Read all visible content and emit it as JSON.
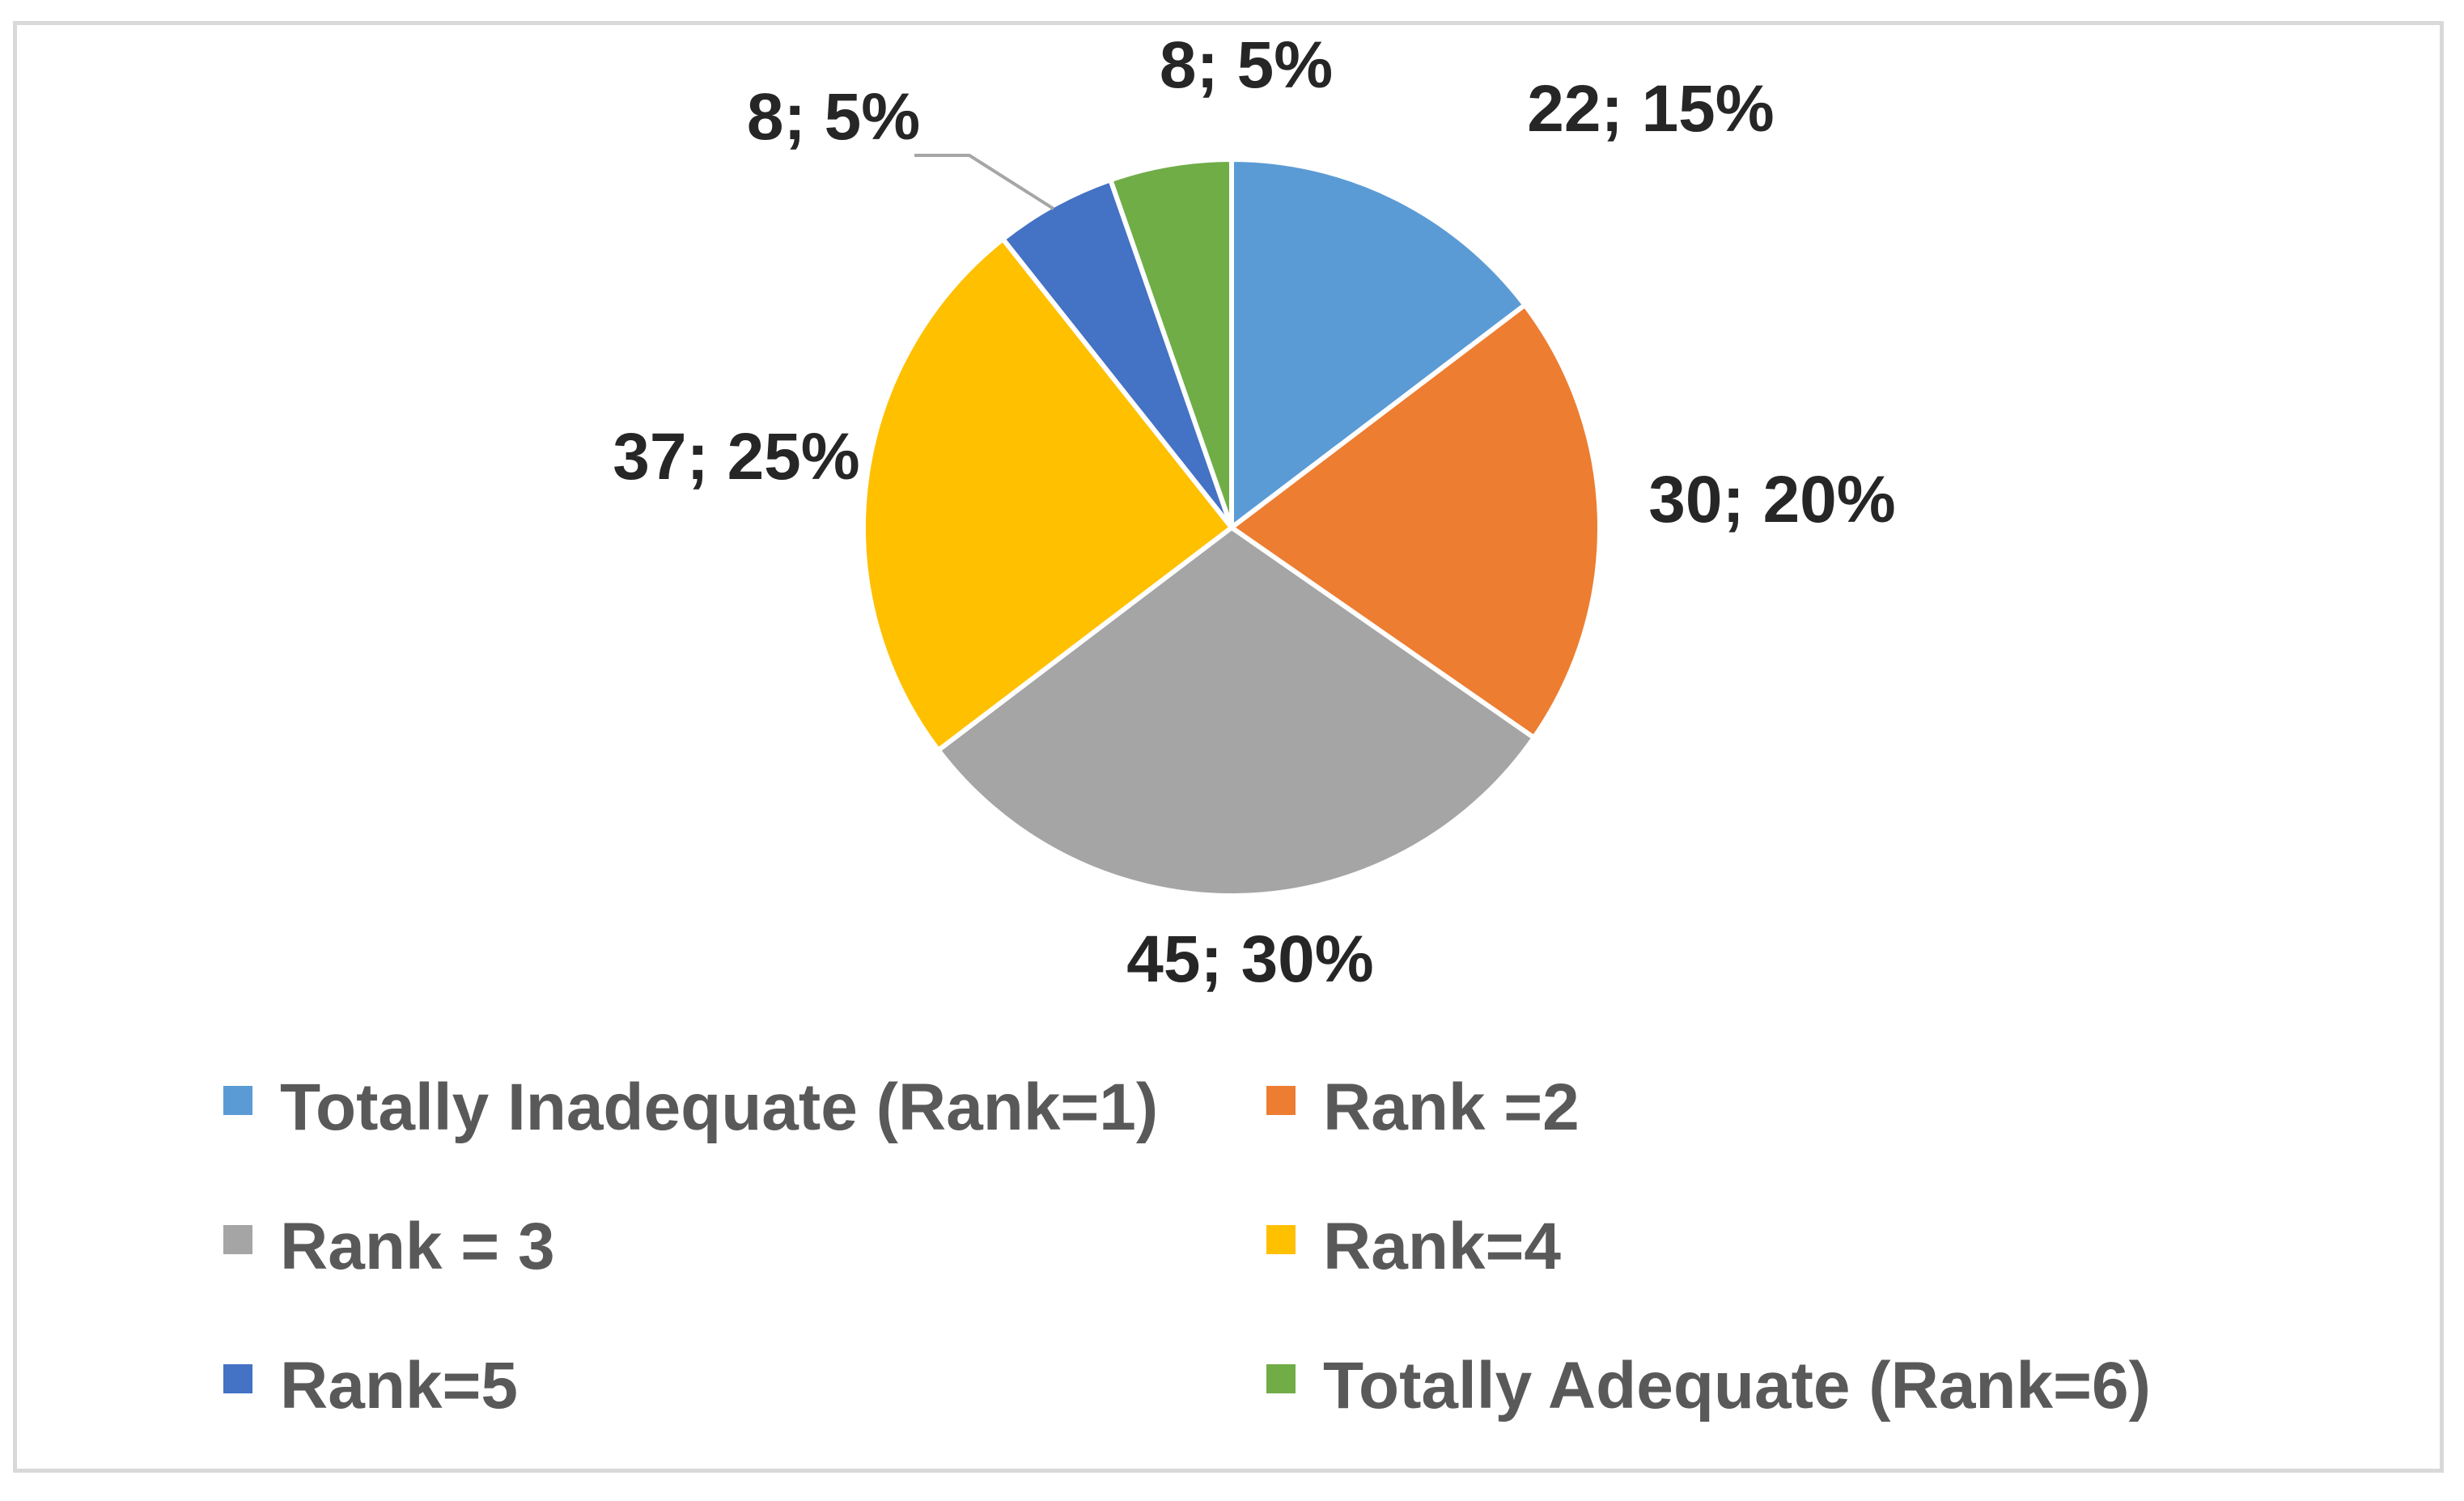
{
  "chart_data": {
    "type": "pie",
    "title": "",
    "legend_position": "bottom",
    "slices": [
      {
        "name": "Totally Inadequate (Rank=1)",
        "value": 22,
        "percent": 15,
        "label": "22; 15%",
        "color": "#5b9bd5"
      },
      {
        "name": "Rank =2",
        "value": 30,
        "percent": 20,
        "label": "30; 20%",
        "color": "#ed7d31"
      },
      {
        "name": "Rank = 3",
        "value": 45,
        "percent": 30,
        "label": "45; 30%",
        "color": "#a5a5a5"
      },
      {
        "name": "Rank=4",
        "value": 37,
        "percent": 25,
        "label": "37; 25%",
        "color": "#ffc000"
      },
      {
        "name": "Rank=5",
        "value": 8,
        "percent": 5,
        "label": "8; 5%",
        "color": "#4472c4"
      },
      {
        "name": "Totally Adequate (Rank=6)",
        "value": 8,
        "percent": 5,
        "label": "8; 5%",
        "color": "#70ad47"
      }
    ]
  }
}
